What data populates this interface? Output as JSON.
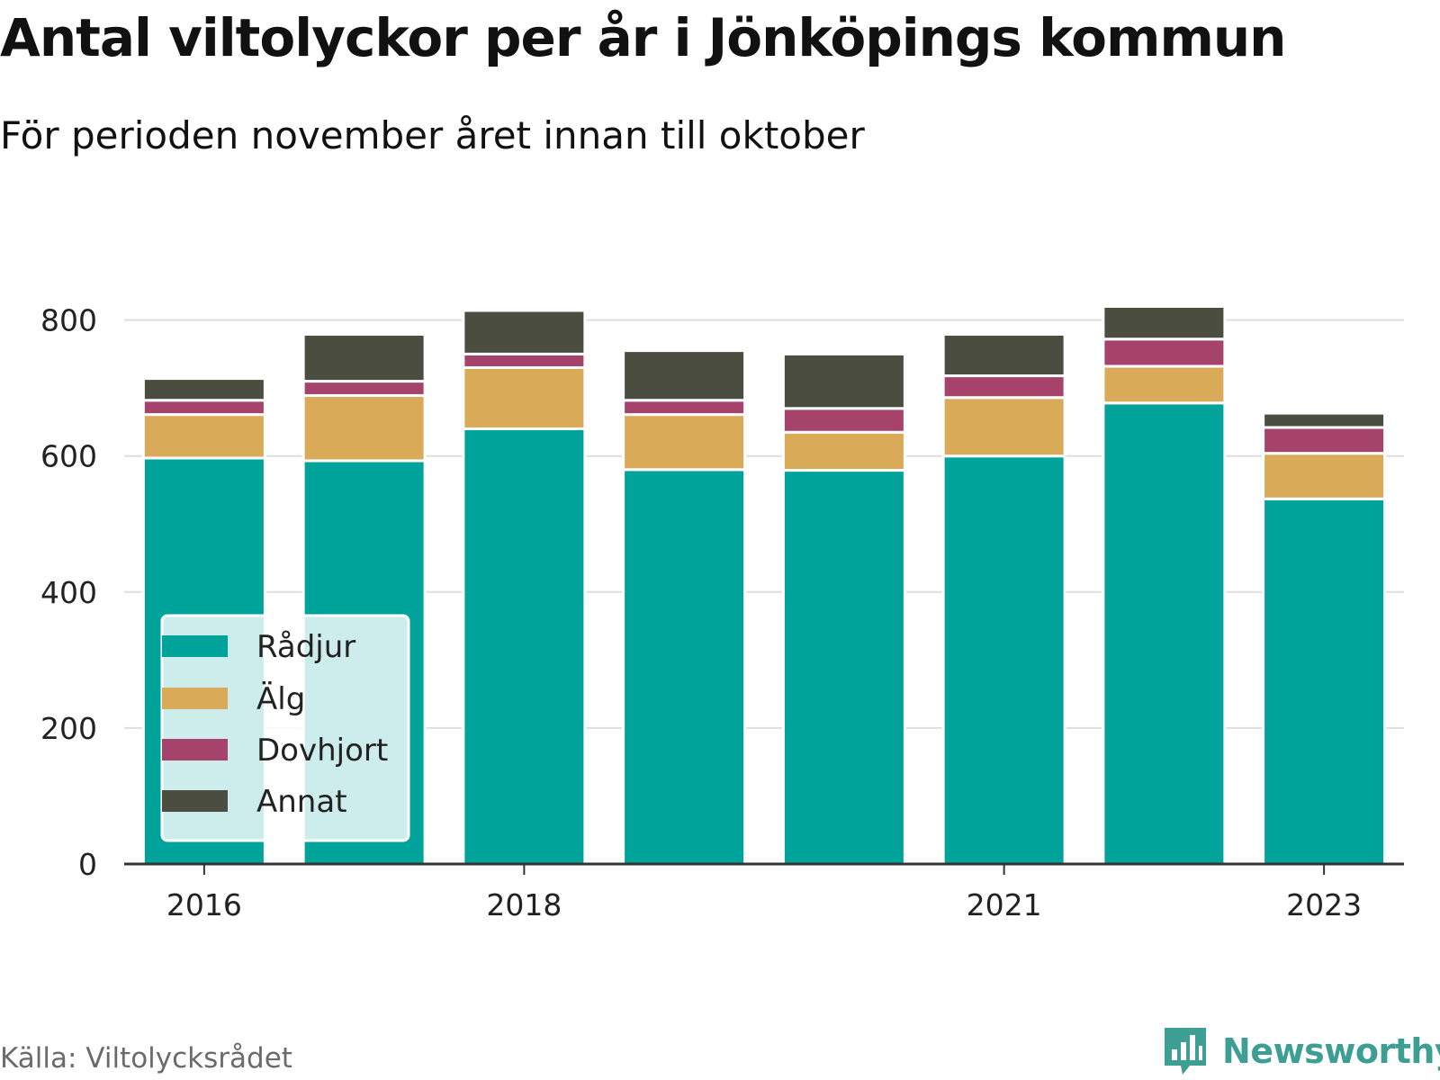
{
  "chart_data": {
    "type": "bar",
    "stacked": true,
    "title": "Antal viltolyckor per år i Jönköpings kommun",
    "subtitle": "För perioden november året innan till oktober",
    "categories": [
      "2016",
      "2017",
      "2018",
      "2019",
      "2020",
      "2021",
      "2022",
      "2023"
    ],
    "x_tick_labels": [
      "2016",
      "",
      "2018",
      "",
      "",
      "2021",
      "",
      "2023"
    ],
    "y_ticks": [
      "0",
      "200",
      "400",
      "600",
      "800"
    ],
    "ylim": [
      0,
      880
    ],
    "grid": true,
    "legend_position": "bottom-left",
    "series": [
      {
        "name": "Rådjur",
        "color": "#00a39a",
        "values": [
          597,
          593,
          640,
          580,
          579,
          600,
          678,
          537
        ]
      },
      {
        "name": "Älg",
        "color": "#d9ab58",
        "values": [
          64,
          96,
          90,
          81,
          56,
          86,
          54,
          67
        ]
      },
      {
        "name": "Dovhjort",
        "color": "#a6436b",
        "values": [
          21,
          21,
          20,
          21,
          35,
          32,
          40,
          38
        ]
      },
      {
        "name": "Annat",
        "color": "#4b4d40",
        "values": [
          32,
          69,
          64,
          73,
          80,
          61,
          48,
          21
        ]
      }
    ]
  },
  "footer": {
    "source": "Källa: Viltolycksrådet",
    "brand": "Newsworthy",
    "brand_color": "#3d9e94",
    "brand_icon": "bar-chart-speech-bubble-icon"
  }
}
